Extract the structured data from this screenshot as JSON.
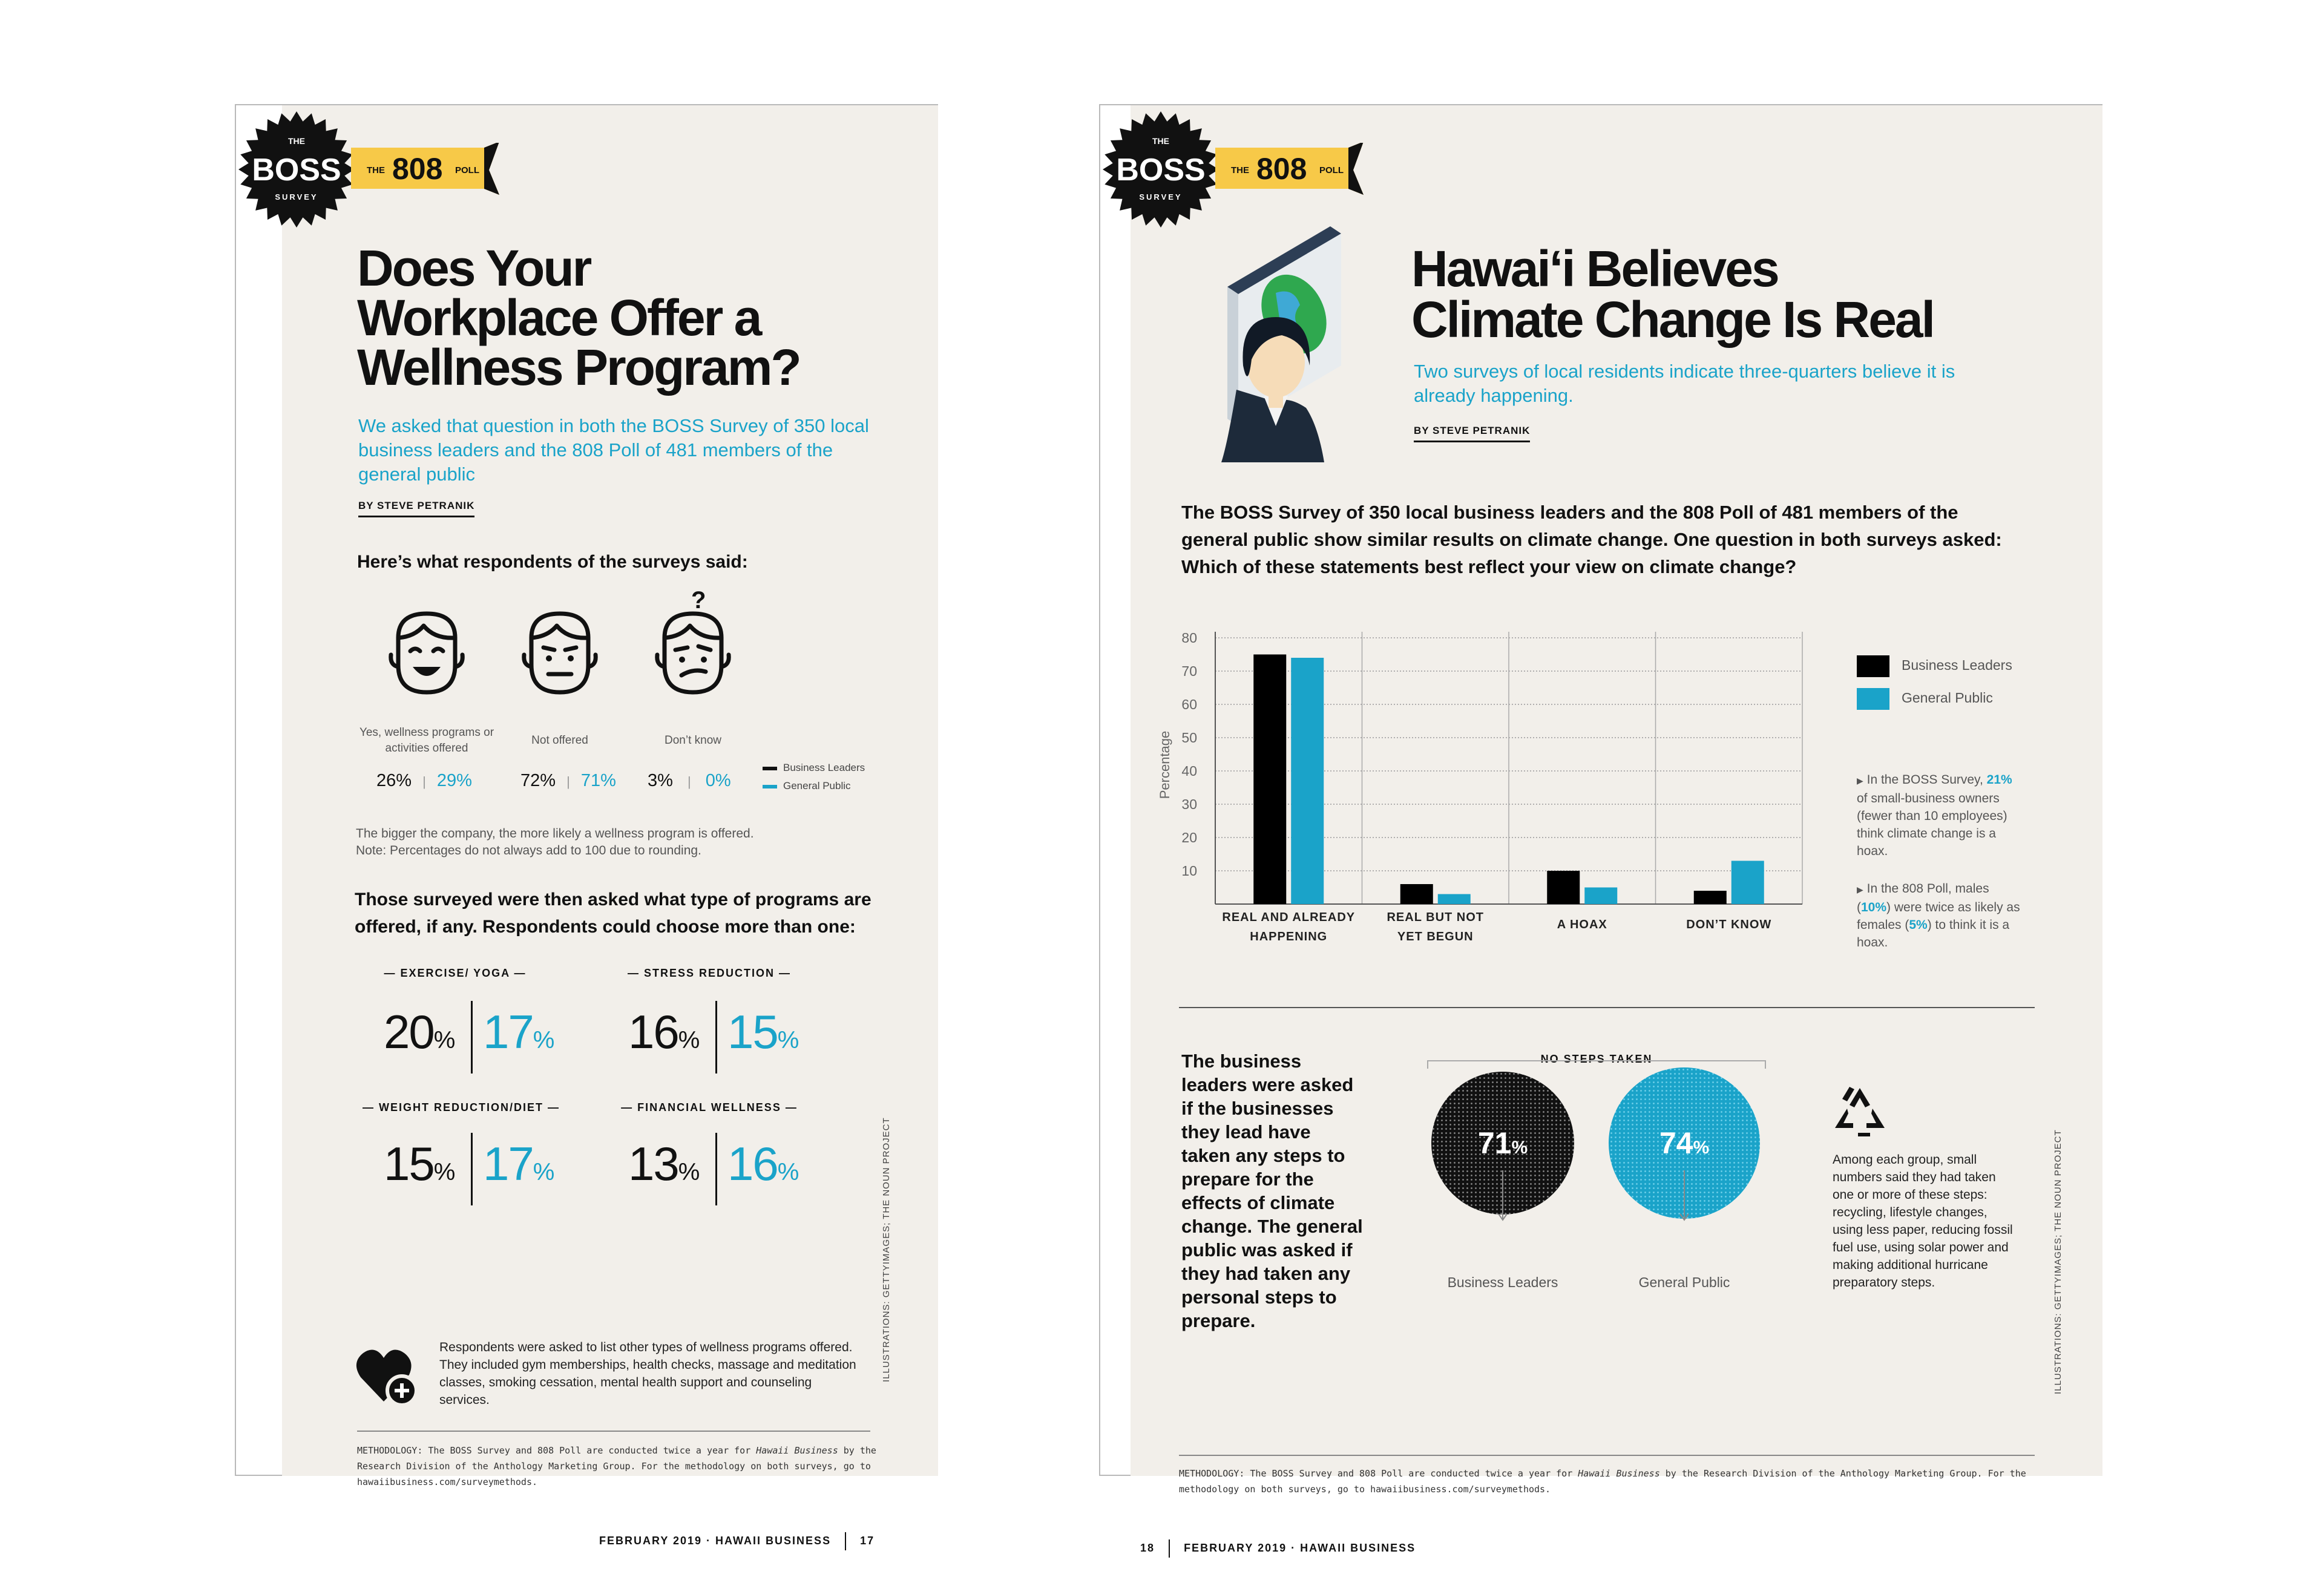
{
  "colors": {
    "business": "#000000",
    "public": "#1aa3c9",
    "badge": "#f7c948",
    "paper": "#f2efea"
  },
  "badge": {
    "the": "THE",
    "boss": "BOSS",
    "survey": "SURVEY",
    "tag_the": "THE",
    "tag_808": "808",
    "tag_poll": "POLL"
  },
  "left": {
    "title": [
      "Does Your",
      "Workplace Offer a",
      "Wellness Program?"
    ],
    "subtitle": "We asked that question in both the BOSS Survey of 350 local business leaders and the 808 Poll of 481 members of the general public",
    "byline": "BY STEVE PETRANIK",
    "lead": "Here’s what respondents of the surveys said:",
    "faces": [
      {
        "label": "Yes, wellness programs or activities offered",
        "leaders": "26%",
        "public": "29%",
        "icon": "smiling-face-icon"
      },
      {
        "label": "Not offered",
        "leaders": "72%",
        "public": "71%",
        "icon": "neutral-face-icon"
      },
      {
        "label": "Don’t know",
        "leaders": "3%",
        "public": "0%",
        "icon": "confused-face-icon"
      }
    ],
    "question_mark": "?",
    "separator": "|",
    "legend": {
      "leaders": "Business Leaders",
      "public": "General Public"
    },
    "note": [
      "The bigger the company, the more likely a wellness program is offered.",
      "Note: Percentages do not always add to 100 due to rounding."
    ],
    "question2": "Those surveyed were then asked what type of programs are offered, if any. Respondents could choose more than one:",
    "programs": [
      {
        "label": "EXERCISE/ YOGA",
        "leaders": "20",
        "public": "17"
      },
      {
        "label": "STRESS REDUCTION",
        "leaders": "16",
        "public": "15"
      },
      {
        "label": "WEIGHT REDUCTION/DIET",
        "leaders": "15",
        "public": "17"
      },
      {
        "label": "FINANCIAL WELLNESS",
        "leaders": "13",
        "public": "16"
      }
    ],
    "pct": "%",
    "dash": "—",
    "other": "Respondents were asked to list other types of wellness programs offered. They included gym memberships, health checks, massage and meditation classes, smoking cessation, mental health support and counseling services.",
    "methodology": {
      "label": "METHODOLOGY:",
      "text1": "The BOSS Survey and 808 Poll are conducted twice a year for",
      "mag": "Hawaii Business",
      "text2": "by the Research Division of the Anthology Marketing Group. For the methodology on both surveys, go to hawaiibusiness.com/surveymethods."
    },
    "credit": "ILLUSTRATIONS: GETTYIMAGES; THE NOUN PROJECT",
    "footer": {
      "text": "FEBRUARY 2019 · HAWAII BUSINESS",
      "page": "17"
    }
  },
  "right": {
    "title": [
      "Hawai‘i Believes",
      "Climate Change Is Real"
    ],
    "subtitle": "Two surveys of local residents indicate three-quarters believe it is already happening.",
    "byline": "BY STEVE PETRANIK",
    "lead": "The BOSS Survey of 350 local business leaders and the 808 Poll of 481 members of the general public show similar results on climate change. One question in both surveys asked: Which of these statements best reflect your view on climate change?",
    "legend": {
      "leaders": "Business Leaders",
      "public": "General Public"
    },
    "notes": [
      {
        "pre": "In the BOSS Survey,",
        "hl": "21%",
        "post": "of small-business owners (fewer than 10 employees) think climate change is a hoax."
      },
      {
        "pre": "In the 808 Poll, males (",
        "hl": "10%",
        "post": ") were twice as likely as females (",
        "hl2": "5%",
        "post2": ") to think it is a hoax."
      }
    ],
    "steps_text": "The business leaders were asked if the businesses they lead have taken any steps to prepare for the effects of climate change. The general public was asked if they had taken any personal steps to prepare.",
    "no_steps": {
      "label": "NO STEPS TAKEN",
      "leaders": "71",
      "public": "74",
      "leaders_label": "Business Leaders",
      "public_label": "General Public"
    },
    "steps_detail": "Among each group, small numbers said they had taken one or more of these steps: recycling, lifestyle changes, using less paper, reducing fossil fuel use, using solar power and making additional hurricane preparatory steps.",
    "methodology": {
      "label": "METHODOLOGY:",
      "text1": "The BOSS Survey and 808 Poll are conducted twice a year for",
      "mag": "Hawaii Business",
      "text2": "by the Research Division of the Anthology Marketing Group. For the methodology on both surveys, go to hawaiibusiness.com/surveymethods."
    },
    "credit": "ILLUSTRATIONS: GETTYIMAGES; THE NOUN PROJECT",
    "footer": {
      "page": "18",
      "text": "FEBRUARY 2019 · HAWAII BUSINESS"
    }
  },
  "chart_data": {
    "type": "bar",
    "title": "Which of these statements best reflect your view on climate change?",
    "ylabel": "Percentage",
    "ylim": [
      0,
      80
    ],
    "yticks": [
      10,
      20,
      30,
      40,
      50,
      60,
      70,
      80
    ],
    "categories": [
      [
        "REAL AND ALREADY",
        "HAPPENING"
      ],
      [
        "REAL BUT NOT",
        "YET BEGUN"
      ],
      [
        "A HOAX"
      ],
      [
        "DON’T KNOW"
      ]
    ],
    "series": [
      {
        "name": "Business Leaders",
        "values": [
          75,
          6,
          10,
          4
        ]
      },
      {
        "name": "General Public",
        "values": [
          74,
          3,
          5,
          13
        ]
      }
    ]
  }
}
